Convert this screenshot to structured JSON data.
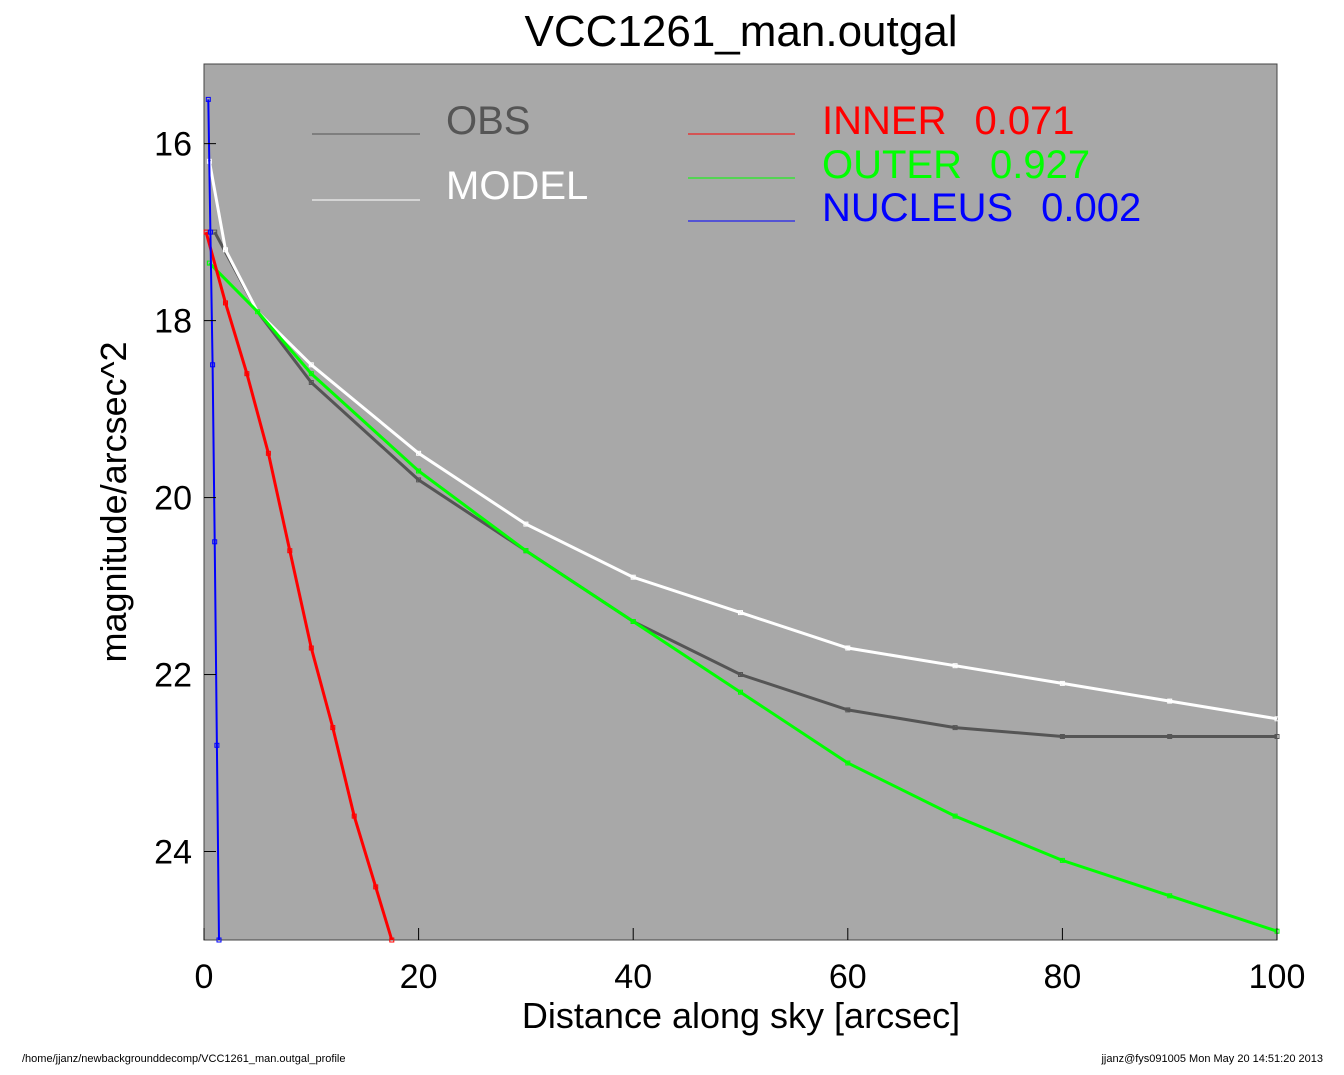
{
  "footer": {
    "left": "/home/jjanz/newbackgrounddecomp/VCC1261_man.outgal_profile",
    "right": "jjanz@fys091005  Mon May 20 14:51:20 2013"
  },
  "chart_data": {
    "type": "scatter",
    "title": "VCC1261_man.outgal",
    "xlabel": "Distance along sky [arcsec]",
    "ylabel": "magnitude/arcsec^2",
    "xlim": [
      0,
      100
    ],
    "ylim": [
      25.0,
      15.1
    ],
    "y_inverted": true,
    "background": "#a8a8a8",
    "x_ticks": [
      "0",
      "20",
      "40",
      "60",
      "80",
      "100"
    ],
    "y_ticks": [
      "16",
      "18",
      "20",
      "22",
      "24"
    ],
    "legend": [
      {
        "label": "OBS",
        "value": "",
        "color": "#555555"
      },
      {
        "label": "MODEL",
        "value": "",
        "color": "#ffffff"
      },
      {
        "label": "INNER",
        "value": "0.071",
        "color": "#ff0000"
      },
      {
        "label": "OUTER",
        "value": "0.927",
        "color": "#00ff00"
      },
      {
        "label": "NUCLEUS",
        "value": "0.002",
        "color": "#0000ff"
      }
    ],
    "series": [
      {
        "name": "OBS",
        "color": "#555555",
        "x": [
          1,
          5,
          10,
          20,
          30,
          40,
          50,
          60,
          70,
          80,
          90,
          100
        ],
        "y": [
          17.0,
          17.9,
          18.7,
          19.8,
          20.6,
          21.4,
          22.0,
          22.4,
          22.6,
          22.7,
          22.7,
          22.7
        ]
      },
      {
        "name": "MODEL",
        "color": "#ffffff",
        "x": [
          0.5,
          2,
          5,
          10,
          20,
          30,
          40,
          50,
          60,
          70,
          80,
          90,
          100
        ],
        "y": [
          16.2,
          17.2,
          17.9,
          18.5,
          19.5,
          20.3,
          20.9,
          21.3,
          21.7,
          21.9,
          22.1,
          22.3,
          22.5
        ]
      },
      {
        "name": "INNER",
        "color": "#ff0000",
        "x": [
          0.2,
          2,
          4,
          6,
          8,
          10,
          12,
          14,
          16,
          17.5
        ],
        "y": [
          17.0,
          17.8,
          18.6,
          19.5,
          20.6,
          21.7,
          22.6,
          23.6,
          24.4,
          25.0
        ]
      },
      {
        "name": "OUTER",
        "color": "#00ff00",
        "x": [
          0.5,
          5,
          10,
          20,
          30,
          40,
          50,
          60,
          70,
          80,
          90,
          100
        ],
        "y": [
          17.35,
          17.9,
          18.6,
          19.7,
          20.6,
          21.4,
          22.2,
          23.0,
          23.6,
          24.1,
          24.5,
          24.9
        ]
      },
      {
        "name": "NUCLEUS",
        "color": "#0000ff",
        "x": [
          0.4,
          0.6,
          0.8,
          1.0,
          1.2,
          1.4
        ],
        "y": [
          15.5,
          17.0,
          18.5,
          20.5,
          22.8,
          25.0
        ]
      }
    ]
  }
}
